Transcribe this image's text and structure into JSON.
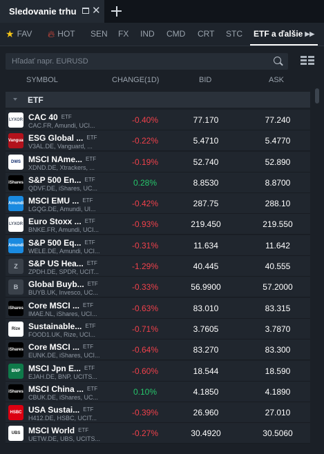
{
  "window": {
    "title": "Sledovanie trhu"
  },
  "tabs": [
    {
      "label": "FAV",
      "icon": "star-icon"
    },
    {
      "label": "HOT",
      "icon": "fire-icon"
    },
    {
      "label": "SEN"
    },
    {
      "label": "FX"
    },
    {
      "label": "IND"
    },
    {
      "label": "CMD"
    },
    {
      "label": "CRT"
    },
    {
      "label": "STC"
    },
    {
      "label": "ETF a ďalšie",
      "active": true
    }
  ],
  "search": {
    "placeholder": "Hľadať napr. EURUSD"
  },
  "columns": {
    "symbol": "SYMBOL",
    "change": "CHANGE(1D)",
    "bid": "BID",
    "ask": "ASK"
  },
  "group": {
    "name": "ETF"
  },
  "colors": {
    "negative": "#f0414b",
    "positive": "#26c66b",
    "background": "#1b2027"
  },
  "rows": [
    {
      "symbol": "CAC 40",
      "tag": "ETF",
      "desc": "CAC.FR, Amundi, UCI...",
      "change": "-0.40%",
      "bid": "77.170",
      "ask": "77.240",
      "logo": "LYXOR",
      "logo_bg": "#ffffff",
      "logo_fg": "#4b5566"
    },
    {
      "symbol": "ESG Global ...",
      "tag": "ETF",
      "desc": "V3AL.DE, Vanguard, ...",
      "change": "-0.22%",
      "bid": "5.4710",
      "ask": "5.4770",
      "logo": "Vanguard",
      "logo_bg": "#b3121c",
      "logo_fg": "#ffffff"
    },
    {
      "symbol": "MSCI NAme...",
      "tag": "ETF",
      "desc": "XDND.DE, Xtrackers, ...",
      "change": "-0.19%",
      "bid": "52.740",
      "ask": "52.890",
      "logo": "DWS",
      "logo_bg": "#ffffff",
      "logo_fg": "#0e2a6b"
    },
    {
      "symbol": "S&P 500 En...",
      "tag": "ETF",
      "desc": "QDVF.DE, iShares, UC...",
      "change": "0.28%",
      "bid": "8.8530",
      "ask": "8.8700",
      "logo": "iShares",
      "logo_bg": "#000000",
      "logo_fg": "#ffffff"
    },
    {
      "symbol": "MSCI EMU ...",
      "tag": "ETF",
      "desc": "LGQG.DE, Amundi, UI...",
      "change": "-0.42%",
      "bid": "287.75",
      "ask": "288.10",
      "logo": "Amundi",
      "logo_bg": "#1a8ae0",
      "logo_fg": "#ffffff"
    },
    {
      "symbol": "Euro Stoxx ...",
      "tag": "ETF",
      "desc": "BNKE.FR, Amundi, UCI...",
      "change": "-0.93%",
      "bid": "219.450",
      "ask": "219.550",
      "logo": "LYXOR",
      "logo_bg": "#ffffff",
      "logo_fg": "#4b5566"
    },
    {
      "symbol": "S&P 500 Eq...",
      "tag": "ETF",
      "desc": "WELE.DE, Amundi, UCI...",
      "change": "-0.31%",
      "bid": "11.634",
      "ask": "11.642",
      "logo": "Amundi",
      "logo_bg": "#1a8ae0",
      "logo_fg": "#ffffff"
    },
    {
      "symbol": "S&P US Hea...",
      "tag": "ETF",
      "desc": "ZPDH.DE, SPDR, UCIT...",
      "change": "-1.29%",
      "bid": "40.445",
      "ask": "40.555",
      "logo": "Z",
      "logo_bg": "#3a414a",
      "logo_fg": "#b6bdc5"
    },
    {
      "symbol": "Global Buyb...",
      "tag": "ETF",
      "desc": "BUYB.UK, Invesco, UC...",
      "change": "-0.33%",
      "bid": "56.9900",
      "ask": "57.2000",
      "logo": "B",
      "logo_bg": "#3a414a",
      "logo_fg": "#b6bdc5"
    },
    {
      "symbol": "Core MSCI ...",
      "tag": "ETF",
      "desc": "IMAE.NL, iShares, UCI...",
      "change": "-0.63%",
      "bid": "83.010",
      "ask": "83.315",
      "logo": "iShares",
      "logo_bg": "#000000",
      "logo_fg": "#ffffff"
    },
    {
      "symbol": "Sustainable...",
      "tag": "ETF",
      "desc": "FOOD1.UK, Rize, UCI...",
      "change": "-0.71%",
      "bid": "3.7605",
      "ask": "3.7870",
      "logo": "Rize",
      "logo_bg": "#ffffff",
      "logo_fg": "#222222"
    },
    {
      "symbol": "Core MSCI ...",
      "tag": "ETF",
      "desc": "EUNK.DE, iShares, UCI...",
      "change": "-0.64%",
      "bid": "83.270",
      "ask": "83.300",
      "logo": "iShares",
      "logo_bg": "#000000",
      "logo_fg": "#ffffff"
    },
    {
      "symbol": "MSCI Jpn E...",
      "tag": "ETF",
      "desc": "EJAH.DE, BNP, UCITS...",
      "change": "-0.60%",
      "bid": "18.544",
      "ask": "18.590",
      "logo": "BNP",
      "logo_bg": "#0f7a4a",
      "logo_fg": "#ffffff"
    },
    {
      "symbol": "MSCI China ...",
      "tag": "ETF",
      "desc": "CBUK.DE, iShares, UC...",
      "change": "0.10%",
      "bid": "4.1850",
      "ask": "4.1890",
      "logo": "iShares",
      "logo_bg": "#000000",
      "logo_fg": "#ffffff"
    },
    {
      "symbol": "USA Sustai...",
      "tag": "ETF",
      "desc": "H412.DE, HSBC, UCIT...",
      "change": "-0.39%",
      "bid": "26.960",
      "ask": "27.010",
      "logo": "HSBC",
      "logo_bg": "#db0011",
      "logo_fg": "#ffffff"
    },
    {
      "symbol": "MSCI World",
      "tag": "ETF",
      "desc": "UETW.DE, UBS, UCITS...",
      "change": "-0.27%",
      "bid": "30.4920",
      "ask": "30.5060",
      "logo": "UBS",
      "logo_bg": "#ffffff",
      "logo_fg": "#222222"
    }
  ]
}
